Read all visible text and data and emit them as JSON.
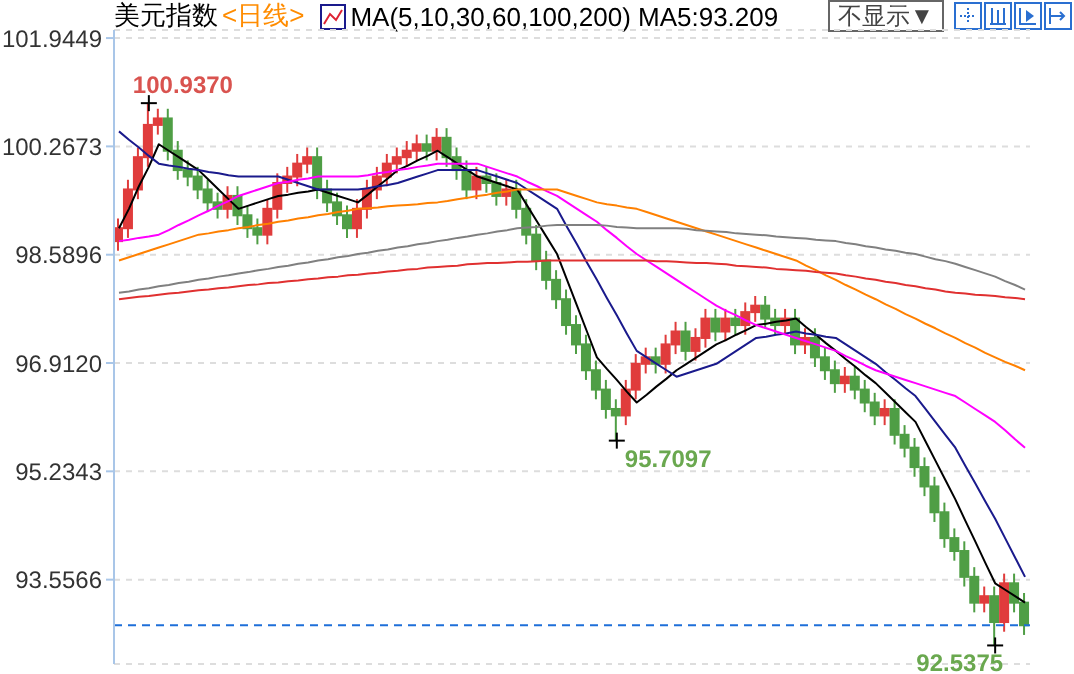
{
  "chart_data": {
    "type": "candlestick",
    "title": "美元指数",
    "subtitle": "<日线>",
    "annotations": [
      "MA(5,10,30,60,100,200) MA5:93.209",
      "不显示▼",
      "100.9370",
      "95.7097",
      "92.5375"
    ],
    "ylim": [
      92.25,
      102.07
    ],
    "yticks": [
      101.9449,
      100.2673,
      98.5896,
      {
        "value": 96.912,
        "label": "96.9120"
      },
      95.2343,
      93.5566
    ],
    "grid": "y",
    "ref_lines": [
      {
        "axis": "y",
        "value": 92.85,
        "color": "#1e6fd9",
        "line_style": "dashed"
      }
    ],
    "categories": [
      null,
      null,
      null,
      null,
      null,
      null,
      null,
      null,
      null,
      null,
      null,
      null,
      null,
      null,
      null,
      null,
      null,
      null,
      null,
      null,
      null,
      null,
      null,
      null,
      null,
      null,
      null,
      null,
      null,
      null,
      null,
      null,
      null,
      null,
      null,
      null,
      null,
      null,
      null,
      null,
      null,
      null,
      null,
      null,
      null,
      null,
      null,
      null,
      null,
      null,
      null,
      null,
      null,
      null,
      null,
      null,
      null,
      null,
      null,
      null,
      null,
      null,
      null,
      null,
      null,
      null,
      null,
      null,
      null,
      null,
      null,
      null,
      null,
      null,
      null,
      null,
      null,
      null,
      null,
      null,
      null,
      null,
      null,
      null,
      null,
      null,
      null,
      null,
      null,
      null,
      null,
      null
    ],
    "ohlc": [
      [
        98.8,
        99.15,
        98.65,
        99.0
      ],
      [
        99.0,
        99.75,
        98.85,
        99.6
      ],
      [
        99.6,
        100.25,
        99.45,
        100.1
      ],
      [
        100.1,
        100.937,
        99.95,
        100.6
      ],
      [
        100.6,
        100.85,
        100.45,
        100.7
      ],
      [
        100.7,
        100.85,
        100.05,
        100.2
      ],
      [
        100.2,
        100.35,
        99.75,
        99.9
      ],
      [
        99.9,
        100.05,
        99.65,
        99.8
      ],
      [
        99.8,
        99.95,
        99.45,
        99.6
      ],
      [
        99.6,
        99.75,
        99.25,
        99.4
      ],
      [
        99.4,
        99.55,
        99.15,
        99.3
      ],
      [
        99.3,
        99.65,
        99.15,
        99.5
      ],
      [
        99.5,
        99.65,
        99.05,
        99.2
      ],
      [
        99.2,
        99.35,
        98.85,
        99.0
      ],
      [
        99.0,
        99.15,
        98.75,
        98.9
      ],
      [
        98.9,
        99.45,
        98.75,
        99.3
      ],
      [
        99.3,
        99.85,
        99.15,
        99.7
      ],
      [
        99.7,
        99.95,
        99.55,
        99.8
      ],
      [
        99.8,
        100.15,
        99.65,
        100.0
      ],
      [
        100.0,
        100.25,
        99.85,
        100.1
      ],
      [
        100.1,
        100.25,
        99.45,
        99.6
      ],
      [
        99.6,
        99.75,
        99.25,
        99.4
      ],
      [
        99.4,
        99.55,
        99.05,
        99.2
      ],
      [
        99.2,
        99.35,
        98.85,
        99.0
      ],
      [
        99.0,
        99.45,
        98.85,
        99.3
      ],
      [
        99.3,
        99.75,
        99.15,
        99.6
      ],
      [
        99.6,
        99.95,
        99.45,
        99.8
      ],
      [
        99.8,
        100.15,
        99.65,
        100.0
      ],
      [
        100.0,
        100.25,
        99.85,
        100.1
      ],
      [
        100.1,
        100.35,
        99.95,
        100.2
      ],
      [
        100.2,
        100.45,
        100.05,
        100.3
      ],
      [
        100.3,
        100.45,
        100.05,
        100.2
      ],
      [
        100.2,
        100.55,
        100.05,
        100.4
      ],
      [
        100.4,
        100.55,
        99.95,
        100.1
      ],
      [
        100.1,
        100.25,
        99.75,
        99.9
      ],
      [
        99.9,
        100.05,
        99.45,
        99.6
      ],
      [
        99.6,
        99.95,
        99.45,
        99.8
      ],
      [
        99.8,
        99.95,
        99.55,
        99.7
      ],
      [
        99.7,
        99.85,
        99.35,
        99.5
      ],
      [
        99.5,
        99.75,
        99.35,
        99.6
      ],
      [
        99.6,
        99.75,
        99.15,
        99.3
      ],
      [
        99.3,
        99.45,
        98.75,
        98.9
      ],
      [
        98.9,
        99.05,
        98.35,
        98.5
      ],
      [
        98.5,
        98.65,
        98.05,
        98.2
      ],
      [
        98.2,
        98.35,
        97.75,
        97.9
      ],
      [
        97.9,
        98.05,
        97.35,
        97.5
      ],
      [
        97.5,
        97.65,
        97.05,
        97.2
      ],
      [
        97.2,
        97.35,
        96.65,
        96.8
      ],
      [
        96.8,
        96.95,
        96.35,
        96.5
      ],
      [
        96.5,
        96.65,
        96.05,
        96.2
      ],
      [
        96.2,
        96.35,
        95.7097,
        96.1
      ],
      [
        96.1,
        96.65,
        95.95,
        96.5
      ],
      [
        96.5,
        97.05,
        96.35,
        96.9
      ],
      [
        96.9,
        97.15,
        96.75,
        97.0
      ],
      [
        97.0,
        97.15,
        96.75,
        96.9
      ],
      [
        96.9,
        97.35,
        96.75,
        97.2
      ],
      [
        97.2,
        97.55,
        97.05,
        97.4
      ],
      [
        97.4,
        97.55,
        96.95,
        97.1
      ],
      [
        97.1,
        97.45,
        96.95,
        97.3
      ],
      [
        97.3,
        97.75,
        97.15,
        97.6
      ],
      [
        97.6,
        97.75,
        97.25,
        97.4
      ],
      [
        97.4,
        97.75,
        97.25,
        97.6
      ],
      [
        97.6,
        97.75,
        97.35,
        97.5
      ],
      [
        97.5,
        97.85,
        97.35,
        97.7
      ],
      [
        97.7,
        97.95,
        97.55,
        97.8
      ],
      [
        97.8,
        97.95,
        97.45,
        97.6
      ],
      [
        97.6,
        97.75,
        97.35,
        97.5
      ],
      [
        97.5,
        97.75,
        97.35,
        97.6
      ],
      [
        97.6,
        97.75,
        97.05,
        97.2
      ],
      [
        97.2,
        97.45,
        97.05,
        97.3
      ],
      [
        97.3,
        97.45,
        96.85,
        97.0
      ],
      [
        97.0,
        97.15,
        96.65,
        96.8
      ],
      [
        96.8,
        96.95,
        96.45,
        96.6
      ],
      [
        96.6,
        96.85,
        96.45,
        96.7
      ],
      [
        96.7,
        96.85,
        96.35,
        96.5
      ],
      [
        96.5,
        96.65,
        96.15,
        96.3
      ],
      [
        96.3,
        96.45,
        95.95,
        96.1
      ],
      [
        96.1,
        96.35,
        95.95,
        96.2
      ],
      [
        96.2,
        96.35,
        95.65,
        95.8
      ],
      [
        95.8,
        95.95,
        95.45,
        95.6
      ],
      [
        95.6,
        95.75,
        95.15,
        95.3
      ],
      [
        95.3,
        95.45,
        94.85,
        95.0
      ],
      [
        95.0,
        95.15,
        94.45,
        94.6
      ],
      [
        94.6,
        94.75,
        94.05,
        94.2
      ],
      [
        94.2,
        94.35,
        93.85,
        94.0
      ],
      [
        94.0,
        94.15,
        93.45,
        93.6
      ],
      [
        93.6,
        93.75,
        93.05,
        93.2
      ],
      [
        93.2,
        93.45,
        93.05,
        93.3
      ],
      [
        93.3,
        93.45,
        92.5375,
        92.9
      ],
      [
        92.9,
        93.65,
        92.75,
        93.5
      ],
      [
        93.5,
        93.65,
        93.05,
        93.2
      ],
      [
        93.2,
        93.35,
        92.7,
        92.85
      ]
    ],
    "series": [
      {
        "type": "line",
        "color": "#000000",
        "values": [
          99.0,
          99.3,
          99.65,
          99.95,
          100.3,
          100.2,
          100.1,
          100.0,
          99.9,
          99.75,
          99.6,
          99.45,
          99.3,
          99.35,
          99.4,
          99.45,
          99.5,
          99.52,
          99.55,
          99.57,
          99.6,
          99.55,
          99.5,
          99.45,
          99.4,
          99.52,
          99.65,
          99.77,
          99.9,
          99.97,
          100.05,
          100.12,
          100.2,
          100.1,
          100.0,
          99.9,
          99.8,
          99.75,
          99.7,
          99.65,
          99.6,
          99.35,
          99.1,
          98.85,
          98.6,
          98.2,
          97.8,
          97.4,
          97.0,
          96.82,
          96.65,
          96.47,
          96.3,
          96.42,
          96.55,
          96.67,
          96.8,
          96.9,
          97.0,
          97.1,
          97.2,
          97.27,
          97.35,
          97.42,
          97.5,
          97.52,
          97.55,
          97.57,
          97.6,
          97.47,
          97.35,
          97.22,
          97.1,
          96.97,
          96.85,
          96.72,
          96.6,
          96.45,
          96.3,
          96.15,
          96.0,
          95.7,
          95.4,
          95.1,
          94.8,
          94.47,
          94.15,
          93.82,
          93.5,
          93.4,
          93.3,
          93.2
        ]
      },
      {
        "type": "line",
        "color": "#1a1a8c",
        "values": [
          100.5,
          100.37,
          100.25,
          100.12,
          100.0,
          99.97,
          99.95,
          99.92,
          99.9,
          99.87,
          99.85,
          99.82,
          99.8,
          99.8,
          99.8,
          99.8,
          99.8,
          99.75,
          99.7,
          99.65,
          99.6,
          99.6,
          99.6,
          99.6,
          99.6,
          99.62,
          99.65,
          99.67,
          99.7,
          99.75,
          99.8,
          99.85,
          99.9,
          99.9,
          99.9,
          99.9,
          99.9,
          99.85,
          99.8,
          99.75,
          99.7,
          99.6,
          99.5,
          99.4,
          99.3,
          99.02,
          98.75,
          98.47,
          98.2,
          97.92,
          97.65,
          97.37,
          97.1,
          97.0,
          96.9,
          96.8,
          96.7,
          96.75,
          96.8,
          96.85,
          96.9,
          97.0,
          97.1,
          97.2,
          97.3,
          97.32,
          97.35,
          97.37,
          97.4,
          97.37,
          97.35,
          97.32,
          97.3,
          97.2,
          97.1,
          97.0,
          96.9,
          96.77,
          96.65,
          96.52,
          96.4,
          96.2,
          96.0,
          95.8,
          95.6,
          95.32,
          95.05,
          94.77,
          94.5,
          94.2,
          93.9,
          93.6
        ]
      },
      {
        "type": "line",
        "color": "#ff00ff",
        "values": [
          98.8,
          98.82,
          98.85,
          98.87,
          98.9,
          98.97,
          99.05,
          99.12,
          99.2,
          99.27,
          99.35,
          99.42,
          99.5,
          99.55,
          99.6,
          99.65,
          99.7,
          99.72,
          99.75,
          99.77,
          99.8,
          99.8,
          99.8,
          99.8,
          99.8,
          99.82,
          99.85,
          99.87,
          99.9,
          99.92,
          99.95,
          99.97,
          100.0,
          100.0,
          100.0,
          100.0,
          100.0,
          99.95,
          99.9,
          99.85,
          99.8,
          99.72,
          99.65,
          99.57,
          99.5,
          99.4,
          99.3,
          99.2,
          99.1,
          98.97,
          98.85,
          98.72,
          98.6,
          98.5,
          98.4,
          98.3,
          98.2,
          98.1,
          98.0,
          97.9,
          97.8,
          97.72,
          97.65,
          97.57,
          97.5,
          97.45,
          97.4,
          97.35,
          97.3,
          97.25,
          97.2,
          97.15,
          97.1,
          97.02,
          96.95,
          96.87,
          96.8,
          96.75,
          96.7,
          96.65,
          96.6,
          96.55,
          96.5,
          96.45,
          96.4,
          96.3,
          96.2,
          96.1,
          96.0,
          95.87,
          95.73,
          95.6
        ]
      },
      {
        "type": "line",
        "color": "#ff8000",
        "values": [
          98.5,
          98.55,
          98.6,
          98.65,
          98.7,
          98.75,
          98.8,
          98.85,
          98.9,
          98.92,
          98.95,
          98.97,
          99.0,
          99.02,
          99.05,
          99.07,
          99.1,
          99.12,
          99.15,
          99.17,
          99.2,
          99.22,
          99.25,
          99.27,
          99.3,
          99.31,
          99.32,
          99.34,
          99.35,
          99.36,
          99.37,
          99.39,
          99.4,
          99.42,
          99.45,
          99.47,
          99.5,
          99.52,
          99.55,
          99.57,
          99.6,
          99.6,
          99.6,
          99.6,
          99.6,
          99.55,
          99.5,
          99.45,
          99.4,
          99.37,
          99.35,
          99.32,
          99.3,
          99.25,
          99.2,
          99.15,
          99.1,
          99.05,
          99.0,
          98.95,
          98.9,
          98.85,
          98.8,
          98.75,
          98.7,
          98.65,
          98.6,
          98.55,
          98.5,
          98.42,
          98.35,
          98.27,
          98.2,
          98.12,
          98.05,
          97.97,
          97.9,
          97.82,
          97.75,
          97.67,
          97.6,
          97.52,
          97.45,
          97.37,
          97.3,
          97.22,
          97.15,
          97.07,
          97.0,
          96.93,
          96.87,
          96.8
        ]
      },
      {
        "type": "line",
        "color": "#808080",
        "values": [
          98.0,
          98.02,
          98.05,
          98.07,
          98.1,
          98.12,
          98.15,
          98.17,
          98.2,
          98.22,
          98.25,
          98.27,
          98.3,
          98.32,
          98.35,
          98.37,
          98.4,
          98.42,
          98.45,
          98.47,
          98.5,
          98.52,
          98.55,
          98.57,
          98.6,
          98.62,
          98.65,
          98.67,
          98.7,
          98.72,
          98.75,
          98.77,
          98.8,
          98.82,
          98.85,
          98.87,
          98.9,
          98.92,
          98.95,
          98.97,
          99.0,
          99.01,
          99.02,
          99.04,
          99.05,
          99.05,
          99.05,
          99.05,
          99.05,
          99.04,
          99.02,
          99.01,
          99.0,
          99.0,
          99.0,
          99.0,
          99.0,
          98.99,
          98.97,
          98.96,
          98.95,
          98.94,
          98.92,
          98.91,
          98.9,
          98.89,
          98.87,
          98.86,
          98.85,
          98.84,
          98.82,
          98.81,
          98.8,
          98.77,
          98.75,
          98.72,
          98.7,
          98.67,
          98.65,
          98.62,
          98.6,
          98.56,
          98.52,
          98.49,
          98.45,
          98.4,
          98.35,
          98.3,
          98.25,
          98.18,
          98.12,
          98.05
        ]
      },
      {
        "type": "line",
        "color": "#e03030",
        "values": [
          97.9,
          97.92,
          97.94,
          97.95,
          97.97,
          97.99,
          98.0,
          98.02,
          98.04,
          98.05,
          98.07,
          98.08,
          98.1,
          98.12,
          98.13,
          98.15,
          98.16,
          98.18,
          98.19,
          98.21,
          98.22,
          98.24,
          98.25,
          98.27,
          98.28,
          98.3,
          98.31,
          98.33,
          98.34,
          98.36,
          98.37,
          98.39,
          98.4,
          98.41,
          98.42,
          98.44,
          98.45,
          98.46,
          98.46,
          98.47,
          98.48,
          98.48,
          98.49,
          98.5,
          98.5,
          98.5,
          98.5,
          98.5,
          98.5,
          98.5,
          98.5,
          98.5,
          98.5,
          98.5,
          98.49,
          98.49,
          98.48,
          98.47,
          98.46,
          98.46,
          98.45,
          98.44,
          98.42,
          98.41,
          98.4,
          98.39,
          98.37,
          98.36,
          98.35,
          98.34,
          98.32,
          98.31,
          98.3,
          98.27,
          98.25,
          98.22,
          98.2,
          98.17,
          98.15,
          98.12,
          98.1,
          98.07,
          98.05,
          98.02,
          98.0,
          97.99,
          97.97,
          97.96,
          97.95,
          97.93,
          97.92,
          97.9
        ]
      }
    ]
  }
}
